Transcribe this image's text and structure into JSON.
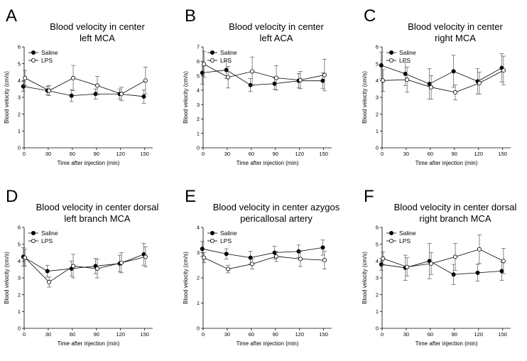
{
  "chart_data": [
    {
      "panel": "A",
      "type": "line",
      "title": [
        "Blood velocity in center",
        "left MCA"
      ],
      "xlabel": "Time after injection (min)",
      "ylabel": "Blood velocity (cm/s)",
      "x": [
        0,
        30,
        60,
        90,
        120,
        150
      ],
      "ylim": [
        0,
        6
      ],
      "yticks": [
        0,
        1,
        2,
        3,
        4,
        5,
        6
      ],
      "legend_placement": "top-left",
      "series": [
        {
          "name": "Saline",
          "marker": "filled",
          "values": [
            3.65,
            3.4,
            3.1,
            3.2,
            3.2,
            3.05
          ],
          "errors": [
            0.3,
            0.25,
            0.35,
            0.3,
            0.3,
            0.4
          ]
        },
        {
          "name": "LPS",
          "marker": "open",
          "values": [
            4.15,
            3.4,
            4.15,
            3.7,
            3.2,
            4.0
          ],
          "errors": [
            0.45,
            0.3,
            0.75,
            0.55,
            0.4,
            0.8
          ]
        }
      ]
    },
    {
      "panel": "B",
      "type": "line",
      "title": [
        "Blood velocity in center",
        "left ACA"
      ],
      "xlabel": "Time after injection (min)",
      "ylabel": "Blood velocity (cm/s)",
      "x": [
        0,
        30,
        60,
        90,
        120,
        150
      ],
      "ylim": [
        0,
        7
      ],
      "yticks": [
        0,
        1,
        2,
        3,
        4,
        5,
        6,
        7
      ],
      "legend_placement": "top-left",
      "series": [
        {
          "name": "Saline",
          "marker": "filled",
          "values": [
            5.2,
            5.4,
            4.35,
            4.45,
            4.65,
            4.65
          ],
          "errors": [
            0.8,
            0.6,
            0.45,
            0.4,
            0.5,
            0.55
          ]
        },
        {
          "name": "LPS",
          "marker": "open",
          "values": [
            5.8,
            4.9,
            5.3,
            4.85,
            4.7,
            5.05
          ],
          "errors": [
            0.9,
            0.75,
            1.0,
            0.85,
            0.6,
            1.1
          ]
        }
      ]
    },
    {
      "panel": "C",
      "type": "line",
      "title": [
        "Blood velocity in center",
        "right MCA"
      ],
      "xlabel": "Time after injection (min)",
      "ylabel": "Blood velocity (cm/s)",
      "x": [
        0,
        30,
        60,
        90,
        120,
        150
      ],
      "ylim": [
        0,
        6
      ],
      "yticks": [
        0,
        1,
        2,
        3,
        4,
        5,
        6
      ],
      "legend_placement": "top-left",
      "series": [
        {
          "name": "Saline",
          "marker": "filled",
          "values": [
            4.9,
            4.4,
            3.8,
            4.55,
            3.95,
            4.75
          ],
          "errors": [
            0.8,
            0.7,
            0.9,
            0.95,
            0.75,
            0.85
          ]
        },
        {
          "name": "LPS",
          "marker": "open",
          "values": [
            4.0,
            4.05,
            3.6,
            3.3,
            3.85,
            4.6
          ],
          "errors": [
            0.65,
            0.75,
            0.7,
            0.45,
            0.65,
            0.85
          ]
        }
      ]
    },
    {
      "panel": "D",
      "type": "line",
      "title": [
        "Blood velocity in center dorsal",
        "left branch MCA"
      ],
      "xlabel": "Time after injection (min)",
      "ylabel": "Blood velocity (cm/s)",
      "x": [
        0,
        30,
        60,
        90,
        120,
        150
      ],
      "ylim": [
        0,
        6
      ],
      "yticks": [
        0,
        1,
        2,
        3,
        4,
        5,
        6
      ],
      "legend_placement": "top-left",
      "series": [
        {
          "name": "Saline",
          "marker": "filled",
          "values": [
            4.25,
            3.4,
            3.55,
            3.7,
            3.85,
            4.4
          ],
          "errors": [
            0.55,
            0.35,
            0.45,
            0.45,
            0.5,
            0.65
          ]
        },
        {
          "name": "LPS",
          "marker": "open",
          "values": [
            4.2,
            2.75,
            3.7,
            3.55,
            3.9,
            4.25
          ],
          "errors": [
            0.5,
            0.3,
            0.7,
            0.55,
            0.6,
            0.6
          ]
        }
      ]
    },
    {
      "panel": "E",
      "type": "line",
      "title": [
        "Blood velocity in center azygos",
        "pericallosal artery"
      ],
      "xlabel": "Time after injection (min)",
      "ylabel": "Blood velocity (cm/s)",
      "x": [
        0,
        30,
        60,
        90,
        120,
        150
      ],
      "ylim": [
        0,
        4
      ],
      "yticks": [
        0,
        1,
        2,
        3,
        4
      ],
      "legend_placement": "top-left",
      "series": [
        {
          "name": "Saline",
          "marker": "filled",
          "values": [
            3.15,
            2.95,
            2.8,
            3.0,
            3.05,
            3.2
          ],
          "errors": [
            0.3,
            0.2,
            0.25,
            0.25,
            0.25,
            0.3
          ]
        },
        {
          "name": "LPS",
          "marker": "open",
          "values": [
            2.8,
            2.35,
            2.55,
            2.85,
            2.75,
            2.7
          ],
          "errors": [
            0.2,
            0.15,
            0.2,
            0.2,
            0.3,
            0.35
          ]
        }
      ]
    },
    {
      "panel": "F",
      "type": "line",
      "title": [
        "Blood velocity in center dorsal",
        "right branch MCA"
      ],
      "xlabel": "Time after injection (min)",
      "ylabel": "Blood velocity (cm/s)",
      "x": [
        0,
        30,
        60,
        90,
        120,
        150
      ],
      "ylim": [
        0,
        6
      ],
      "yticks": [
        0,
        1,
        2,
        3,
        4,
        5,
        6
      ],
      "legend_placement": "top-left",
      "series": [
        {
          "name": "Saline",
          "marker": "filled",
          "values": [
            3.8,
            3.6,
            4.0,
            3.2,
            3.3,
            3.4
          ],
          "errors": [
            0.35,
            0.75,
            1.05,
            0.6,
            0.5,
            0.55
          ]
        },
        {
          "name": "LPS",
          "marker": "open",
          "values": [
            4.15,
            3.65,
            3.85,
            4.25,
            4.7,
            4.0
          ],
          "errors": [
            0.4,
            0.55,
            0.65,
            0.8,
            0.85,
            0.75
          ]
        }
      ]
    }
  ]
}
